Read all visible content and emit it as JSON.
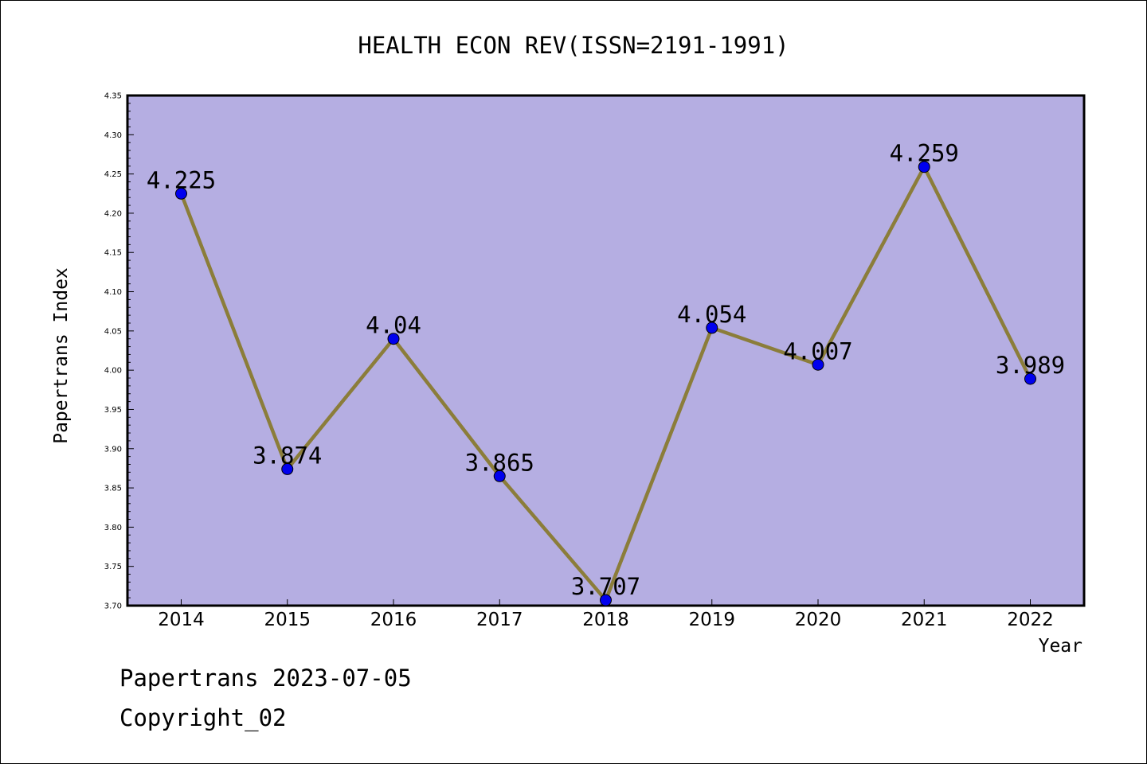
{
  "chart_data": {
    "type": "line",
    "title": "HEALTH ECON REV(ISSN=2191-1991)",
    "xlabel": "Year",
    "ylabel": "Papertrans Index",
    "categories": [
      "2014",
      "2015",
      "2016",
      "2017",
      "2018",
      "2019",
      "2020",
      "2021",
      "2022"
    ],
    "series": [
      {
        "values": [
          4.225,
          3.874,
          4.04,
          3.865,
          3.707,
          4.054,
          4.007,
          4.259,
          3.989
        ],
        "labels": [
          "4.225",
          "3.874",
          "4.04",
          "3.865",
          "3.707",
          "4.054",
          "4.007",
          "4.259",
          "3.989"
        ]
      }
    ],
    "ylim": [
      3.7,
      4.35
    ],
    "yticks": [
      "3.70",
      "3.75",
      "3.80",
      "3.85",
      "3.90",
      "3.95",
      "4.00",
      "4.05",
      "4.10",
      "4.15",
      "4.20",
      "4.25",
      "4.30",
      "4.35"
    ],
    "grid": false,
    "colors": {
      "plot_background": "#b5aee2",
      "line": "#8b7d3a",
      "marker": "#0000ee"
    }
  },
  "footer": {
    "date_line": "Papertrans 2023-07-05",
    "copyright_line": "Copyright_02"
  }
}
